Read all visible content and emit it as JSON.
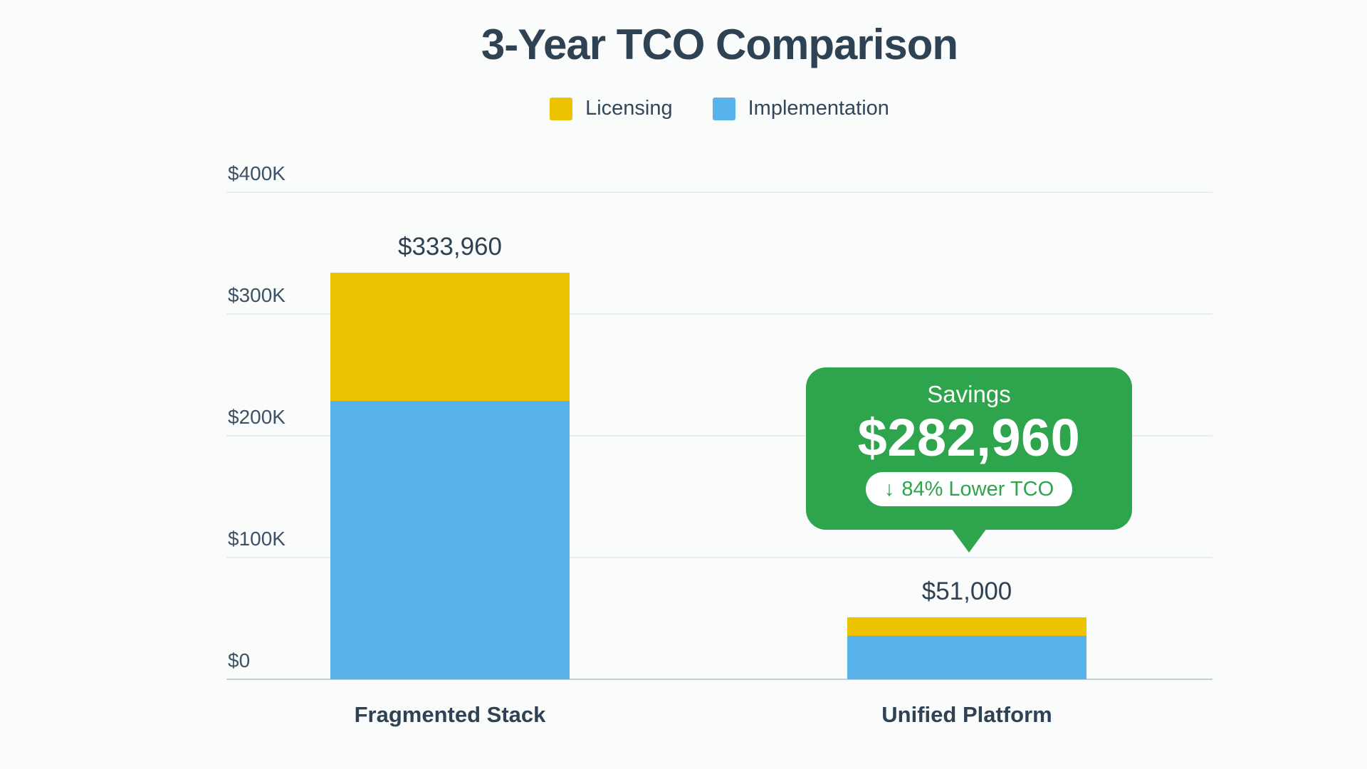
{
  "chart_data": {
    "type": "bar",
    "stacked": true,
    "title": "3-Year TCO Comparison",
    "categories": [
      "Fragmented Stack",
      "Unified Platform"
    ],
    "series": [
      {
        "name": "Licensing",
        "color": "#EDC301",
        "values": [
          105000,
          15000
        ]
      },
      {
        "name": "Implementation",
        "color": "#57B3E9",
        "values": [
          228960,
          36000
        ]
      }
    ],
    "totals": [
      333960,
      51000
    ],
    "total_labels": [
      "$333,960",
      "$51,000"
    ],
    "xlabel": "",
    "ylabel": "",
    "ylim": [
      0,
      400000
    ],
    "yticks": [
      {
        "label": "$400K",
        "value": 400000
      },
      {
        "label": "$300K",
        "value": 300000
      },
      {
        "label": "$200K",
        "value": 200000
      },
      {
        "label": "$100K",
        "value": 100000
      },
      {
        "label": "$0",
        "value": 0
      }
    ],
    "grid": true,
    "legend_position": "top"
  },
  "callout": {
    "title": "Savings",
    "amount": "$282,960",
    "badge_icon": "↓",
    "badge_text": "84% Lower TCO",
    "color": "#2EA44D"
  },
  "colors": {
    "background": "#FAFBFB",
    "text_dark": "#2F4254",
    "tick_text": "#3E5265",
    "gridline": "#E9EDF1",
    "axis_line": "#C6CFD7",
    "licensing": "#EDC301",
    "implementation": "#57B3E9",
    "savings_green": "#2EA44D"
  }
}
